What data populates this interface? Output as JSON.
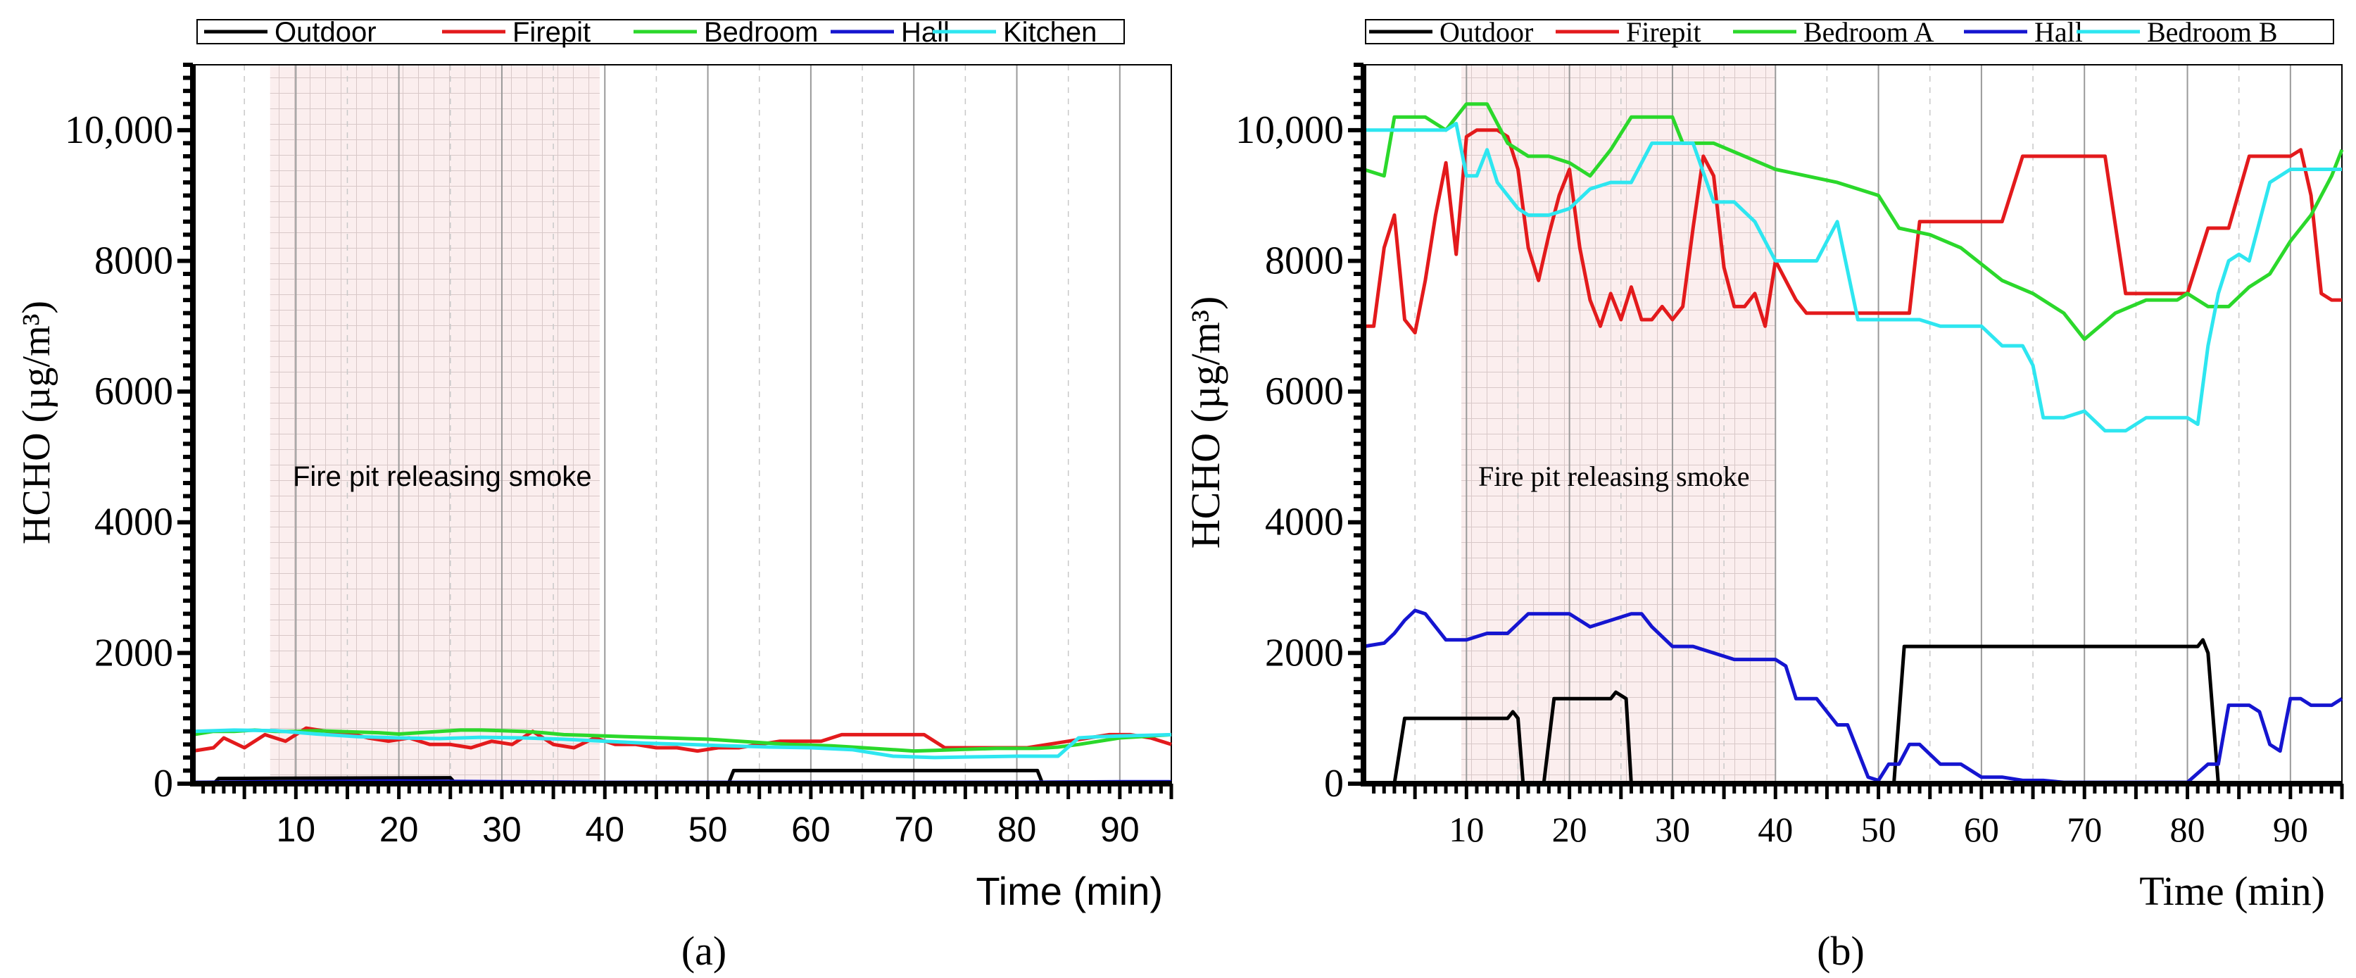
{
  "chart_data": [
    {
      "type": "line",
      "panel_label": "(a)",
      "title": "",
      "xlabel": "Time (min)",
      "ylabel": "HCHO (µg/m³)",
      "xlim": [
        0,
        95
      ],
      "ylim": [
        0,
        11000
      ],
      "x_ticks": [
        10,
        20,
        30,
        40,
        50,
        60,
        70,
        80,
        90
      ],
      "y_ticks": [
        0,
        2000,
        4000,
        6000,
        8000,
        10000
      ],
      "y_tick_labels": [
        "0",
        "2000",
        "4000",
        "6000",
        "8000",
        "10,000"
      ],
      "annotation": "Fire pit releasing smoke",
      "shaded_region": [
        7.5,
        39.5
      ],
      "legend_position": "top",
      "series": [
        {
          "name": "Outdoor",
          "color": "#000000",
          "x": [
            0,
            2,
            2.5,
            25,
            25.5,
            52,
            52.5,
            82,
            82.5,
            95
          ],
          "y": [
            0,
            0,
            80,
            90,
            0,
            0,
            200,
            200,
            0,
            0
          ]
        },
        {
          "name": "Firepit",
          "color": "#e31a1c",
          "x": [
            0,
            2,
            3,
            5,
            7,
            9,
            11,
            13,
            15,
            17,
            19,
            21,
            23,
            25,
            27,
            29,
            31,
            33,
            35,
            37,
            39,
            41,
            43,
            45,
            47,
            49,
            51,
            53,
            55,
            57,
            59,
            61,
            63,
            65,
            67,
            69,
            71,
            73,
            75,
            77,
            79,
            81,
            83,
            85,
            87,
            89,
            91,
            93,
            95
          ],
          "y": [
            500,
            550,
            700,
            550,
            750,
            650,
            850,
            800,
            780,
            700,
            650,
            700,
            600,
            600,
            550,
            650,
            600,
            800,
            600,
            550,
            700,
            600,
            600,
            550,
            550,
            500,
            550,
            550,
            600,
            650,
            650,
            650,
            750,
            750,
            750,
            750,
            750,
            550,
            550,
            550,
            550,
            550,
            600,
            650,
            700,
            750,
            750,
            700,
            600
          ]
        },
        {
          "name": "Bedroom",
          "color": "#2bd82b",
          "x": [
            0,
            2,
            4,
            6,
            8,
            10,
            12,
            14,
            16,
            18,
            20,
            22,
            24,
            26,
            28,
            30,
            32,
            34,
            36,
            38,
            40,
            42,
            44,
            46,
            48,
            50,
            52,
            54,
            56,
            58,
            60,
            62,
            64,
            66,
            68,
            70,
            72,
            74,
            76,
            78,
            80,
            82,
            84,
            86,
            88,
            90,
            92,
            95
          ],
          "y": [
            750,
            800,
            800,
            820,
            800,
            800,
            810,
            800,
            790,
            780,
            760,
            780,
            800,
            820,
            820,
            810,
            800,
            780,
            750,
            740,
            730,
            720,
            710,
            700,
            690,
            680,
            660,
            640,
            620,
            600,
            590,
            580,
            560,
            540,
            520,
            500,
            510,
            520,
            530,
            540,
            540,
            540,
            560,
            600,
            650,
            700,
            720,
            750
          ]
        },
        {
          "name": "Hall",
          "color": "#1515d0",
          "x": [
            0,
            10,
            20,
            30,
            40,
            50,
            60,
            70,
            80,
            90,
            95
          ],
          "y": [
            20,
            30,
            40,
            30,
            20,
            20,
            20,
            20,
            20,
            30,
            30
          ]
        },
        {
          "name": "Kitchen",
          "color": "#2ee6f0",
          "x": [
            0,
            4,
            8,
            12,
            16,
            20,
            24,
            28,
            32,
            36,
            40,
            44,
            48,
            52,
            56,
            60,
            64,
            68,
            72,
            76,
            80,
            84,
            86,
            88,
            90,
            95
          ],
          "y": [
            800,
            820,
            810,
            760,
            720,
            700,
            690,
            710,
            700,
            680,
            650,
            620,
            600,
            580,
            560,
            550,
            520,
            420,
            400,
            410,
            420,
            420,
            700,
            720,
            730,
            750
          ]
        }
      ]
    },
    {
      "type": "line",
      "panel_label": "(b)",
      "title": "",
      "xlabel": "Time (min)",
      "ylabel": "HCHO (µg/m³)",
      "xlim": [
        0,
        95
      ],
      "ylim": [
        0,
        11000
      ],
      "x_ticks": [
        10,
        20,
        30,
        40,
        50,
        60,
        70,
        80,
        90
      ],
      "y_ticks": [
        0,
        2000,
        4000,
        6000,
        8000,
        10000
      ],
      "y_tick_labels": [
        "0",
        "2000",
        "4000",
        "6000",
        "8000",
        "10,000"
      ],
      "annotation": "Fire pit releasing smoke",
      "shaded_region": [
        9.5,
        40
      ],
      "legend_position": "top",
      "series": [
        {
          "name": "Outdoor",
          "color": "#000000",
          "x": [
            2.5,
            3,
            4,
            5,
            6,
            14,
            14.5,
            15,
            15.5,
            17.5,
            18.5,
            19,
            24,
            24.5,
            25.5,
            26,
            51.5,
            52.5,
            53,
            54,
            55,
            80,
            81,
            81.5,
            82,
            83,
            95
          ],
          "y": [
            0,
            0,
            1000,
            1000,
            1000,
            1000,
            1100,
            1000,
            0,
            0,
            1300,
            1300,
            1300,
            1400,
            1300,
            0,
            0,
            2100,
            2100,
            2100,
            2100,
            2100,
            2100,
            2200,
            2000,
            0,
            0
          ]
        },
        {
          "name": "Firepit",
          "color": "#e31a1c",
          "x": [
            0,
            1,
            2,
            3,
            4,
            5,
            6,
            7,
            8,
            9,
            10,
            11,
            12,
            13,
            14,
            15,
            16,
            17,
            18,
            19,
            20,
            21,
            22,
            23,
            24,
            25,
            26,
            27,
            28,
            29,
            30,
            31,
            32,
            33,
            34,
            35,
            36,
            37,
            38,
            39,
            40,
            41,
            42,
            43,
            44,
            45,
            46,
            48,
            50,
            52,
            53,
            54,
            56,
            58,
            60,
            62,
            64,
            66,
            68,
            70,
            72,
            74,
            76,
            78,
            80,
            82,
            84,
            86,
            88,
            90,
            91,
            92,
            93,
            94,
            95
          ],
          "y": [
            7000,
            7000,
            8200,
            8700,
            7100,
            6900,
            7700,
            8700,
            9500,
            8100,
            9900,
            10000,
            10000,
            10000,
            9900,
            9400,
            8200,
            7700,
            8400,
            9000,
            9400,
            8200,
            7400,
            7000,
            7500,
            7100,
            7600,
            7100,
            7100,
            7300,
            7100,
            7300,
            8500,
            9600,
            9300,
            7900,
            7300,
            7300,
            7500,
            7000,
            8000,
            7700,
            7400,
            7200,
            7200,
            7200,
            7200,
            7200,
            7200,
            7200,
            7200,
            8600,
            8600,
            8600,
            8600,
            8600,
            9600,
            9600,
            9600,
            9600,
            9600,
            7500,
            7500,
            7500,
            7500,
            8500,
            8500,
            9600,
            9600,
            9600,
            9700,
            9000,
            7500,
            7400,
            7400
          ]
        },
        {
          "name": "Bedroom A",
          "color": "#2bd82b",
          "x": [
            0,
            2,
            3,
            4,
            6,
            8,
            10,
            12,
            14,
            16,
            18,
            20,
            22,
            24,
            26,
            28,
            30,
            31,
            34,
            37,
            40,
            43,
            46,
            50,
            52,
            55,
            58,
            62,
            65,
            68,
            70,
            73,
            76,
            79,
            80,
            82,
            84,
            86,
            88,
            90,
            92,
            94,
            95
          ],
          "y": [
            9400,
            9300,
            10200,
            10200,
            10200,
            10000,
            10400,
            10400,
            9800,
            9600,
            9600,
            9500,
            9300,
            9700,
            10200,
            10200,
            10200,
            9800,
            9800,
            9600,
            9400,
            9300,
            9200,
            9000,
            8500,
            8400,
            8200,
            7700,
            7500,
            7200,
            6800,
            7200,
            7400,
            7400,
            7500,
            7300,
            7300,
            7600,
            7800,
            8300,
            8700,
            9300,
            9700
          ]
        },
        {
          "name": "Hall",
          "color": "#1515d0",
          "x": [
            0,
            2,
            3,
            4,
            5,
            6,
            8,
            10,
            12,
            14,
            16,
            18,
            20,
            22,
            24,
            26,
            27,
            28,
            30,
            32,
            34,
            36,
            38,
            40,
            41,
            42,
            44,
            46,
            47,
            48,
            49,
            50,
            51,
            52,
            53,
            54,
            56,
            58,
            60,
            62,
            64,
            66,
            68,
            70,
            72,
            74,
            76,
            78,
            80,
            82,
            83,
            84,
            85,
            86,
            87,
            88,
            89,
            90,
            91,
            92,
            94,
            95
          ],
          "y": [
            2100,
            2150,
            2300,
            2500,
            2650,
            2600,
            2200,
            2200,
            2300,
            2300,
            2600,
            2600,
            2600,
            2400,
            2500,
            2600,
            2600,
            2400,
            2100,
            2100,
            2000,
            1900,
            1900,
            1900,
            1800,
            1300,
            1300,
            900,
            900,
            500,
            100,
            50,
            300,
            300,
            600,
            600,
            300,
            300,
            100,
            100,
            50,
            50,
            20,
            20,
            20,
            20,
            20,
            20,
            20,
            300,
            300,
            1200,
            1200,
            1200,
            1100,
            600,
            500,
            1300,
            1300,
            1200,
            1200,
            1300
          ]
        },
        {
          "name": "Bedroom B",
          "color": "#2ee6f0",
          "x": [
            0,
            2,
            4,
            6,
            8,
            9,
            10,
            11,
            12,
            13,
            14,
            15,
            16,
            18,
            20,
            22,
            24,
            26,
            28,
            30,
            32,
            34,
            36,
            38,
            40,
            42,
            44,
            45,
            46,
            48,
            50,
            52,
            54,
            56,
            58,
            60,
            62,
            64,
            65,
            66,
            68,
            70,
            72,
            74,
            76,
            78,
            80,
            81,
            82,
            83,
            84,
            85,
            86,
            88,
            89,
            90,
            92,
            94,
            95
          ],
          "y": [
            10000,
            10000,
            10000,
            10000,
            10000,
            10100,
            9300,
            9300,
            9700,
            9200,
            9000,
            8800,
            8700,
            8700,
            8800,
            9100,
            9200,
            9200,
            9800,
            9800,
            9800,
            8900,
            8900,
            8600,
            8000,
            8000,
            8000,
            8300,
            8600,
            7100,
            7100,
            7100,
            7100,
            7000,
            7000,
            7000,
            6700,
            6700,
            6400,
            5600,
            5600,
            5700,
            5400,
            5400,
            5600,
            5600,
            5600,
            5500,
            6700,
            7500,
            8000,
            8100,
            8000,
            9200,
            9300,
            9400,
            9400,
            9400,
            9400
          ]
        }
      ]
    }
  ]
}
